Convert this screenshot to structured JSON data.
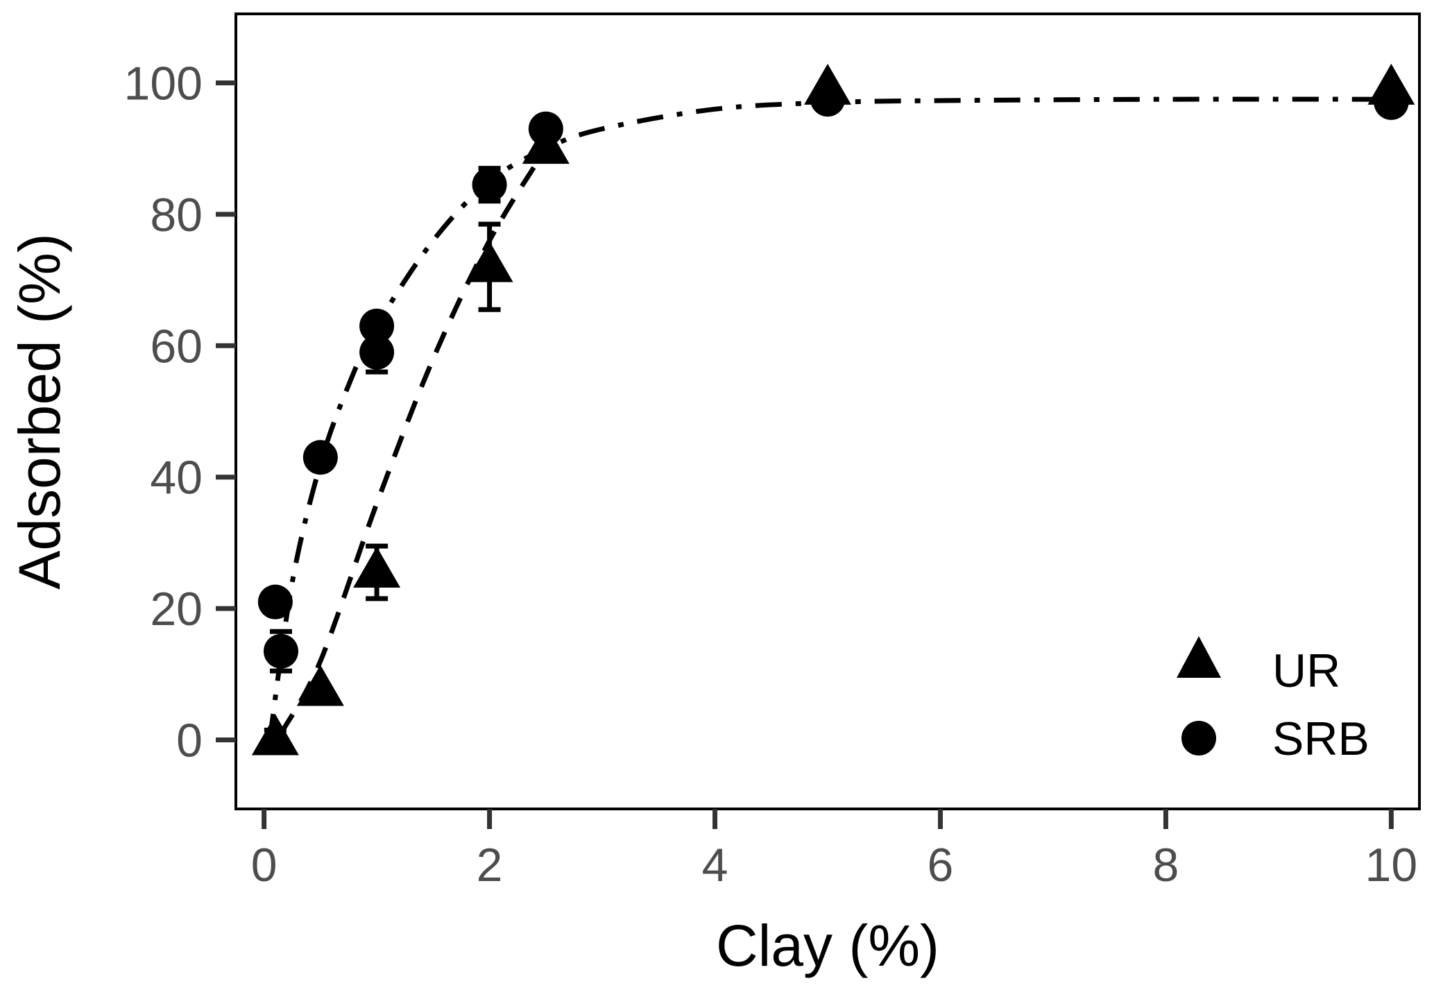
{
  "chart_data": {
    "type": "scatter",
    "xlabel": "Clay (%)",
    "ylabel": "Adsorbed (%)",
    "xlim": [
      -0.25,
      10.25
    ],
    "ylim": [
      -10.5,
      110.5
    ],
    "xticks": [
      0,
      2,
      4,
      6,
      8,
      10
    ],
    "yticks": [
      0,
      20,
      40,
      60,
      80,
      100
    ],
    "xtick_labels": [
      "0",
      "2",
      "4",
      "6",
      "8",
      "10"
    ],
    "ytick_labels": [
      "0",
      "20",
      "40",
      "60",
      "80",
      "100"
    ],
    "grid": false,
    "legend_position": "bottom-right",
    "series": [
      {
        "name": "UR",
        "marker": "triangle",
        "color": "#000000",
        "points": [
          {
            "x": 0.1,
            "y": 0,
            "err": 1.5
          },
          {
            "x": 0.5,
            "y": 7.5,
            "err": 0
          },
          {
            "x": 1.0,
            "y": 25.5,
            "err": 4
          },
          {
            "x": 2.0,
            "y": 72,
            "err": 6.5
          },
          {
            "x": 2.5,
            "y": 90,
            "err": 0
          },
          {
            "x": 5.0,
            "y": 99,
            "err": 0
          },
          {
            "x": 10.0,
            "y": 99,
            "err": 0
          }
        ],
        "fit": {
          "style": "dashed",
          "x": [
            0.15,
            0.5,
            1.0,
            1.5,
            2.0,
            2.5
          ],
          "y": [
            1,
            12,
            36,
            58,
            76,
            90
          ]
        }
      },
      {
        "name": "SRB",
        "marker": "circle",
        "color": "#000000",
        "points": [
          {
            "x": 0.1,
            "y": 21,
            "err": 0
          },
          {
            "x": 0.15,
            "y": 13.5,
            "err": 3
          },
          {
            "x": 0.5,
            "y": 43,
            "err": 0
          },
          {
            "x": 1.0,
            "y": 63,
            "err": 0
          },
          {
            "x": 1.0,
            "y": 59,
            "err": 3
          },
          {
            "x": 2.0,
            "y": 84.5,
            "err": 2.5
          },
          {
            "x": 2.5,
            "y": 93,
            "err": 0
          },
          {
            "x": 5.0,
            "y": 97.5,
            "err": 0
          },
          {
            "x": 10.0,
            "y": 97,
            "err": 0
          }
        ],
        "fit": {
          "style": "dashdot",
          "x": [
            0.05,
            0.25,
            0.5,
            0.75,
            1.0,
            1.5,
            2.0,
            2.5,
            3.0,
            4.0,
            5.0,
            6.0,
            8.0,
            10.0
          ],
          "y": [
            0,
            24,
            42,
            54,
            63,
            76,
            85,
            90,
            93,
            96,
            97,
            97.3,
            97.5,
            97.5
          ]
        }
      }
    ]
  }
}
